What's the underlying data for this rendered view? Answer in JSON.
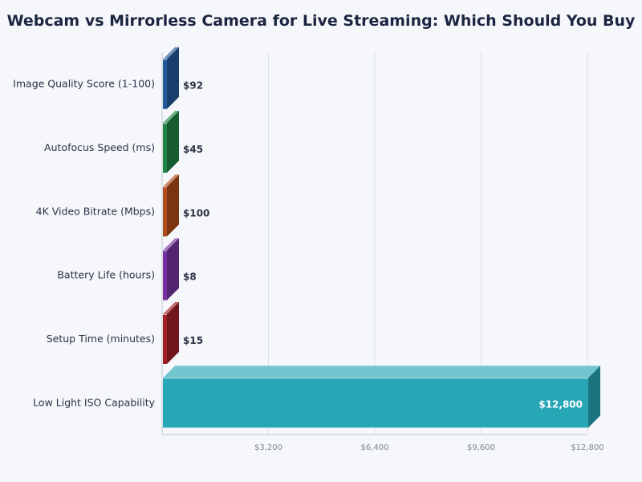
{
  "chart_data": {
    "type": "bar",
    "orientation": "horizontal",
    "style": "3d",
    "title": "Webcam vs Mirrorless Camera for Live Streaming: Which Should You Buy",
    "categories": [
      "Image Quality Score (1-100)",
      "Autofocus Speed (ms)",
      "4K Video Bitrate (Mbps)",
      "Battery Life (hours)",
      "Setup Time (minutes)",
      "Low Light ISO Capability"
    ],
    "values": [
      92,
      45,
      100,
      8,
      15,
      12800
    ],
    "data_labels": [
      "$92",
      "$45",
      "$100",
      "$8",
      "$15",
      "$12,800"
    ],
    "colors": [
      "#23599a",
      "#1f8445",
      "#b04c1b",
      "#7633a0",
      "#a21f26",
      "#27a6b5"
    ],
    "xlim": [
      0,
      12800
    ],
    "xticks": [
      3200,
      6400,
      9600,
      12800
    ],
    "xtick_labels": [
      "$3,200",
      "$6,400",
      "$9,600",
      "$12,800"
    ],
    "grid": true,
    "legend": "none"
  }
}
